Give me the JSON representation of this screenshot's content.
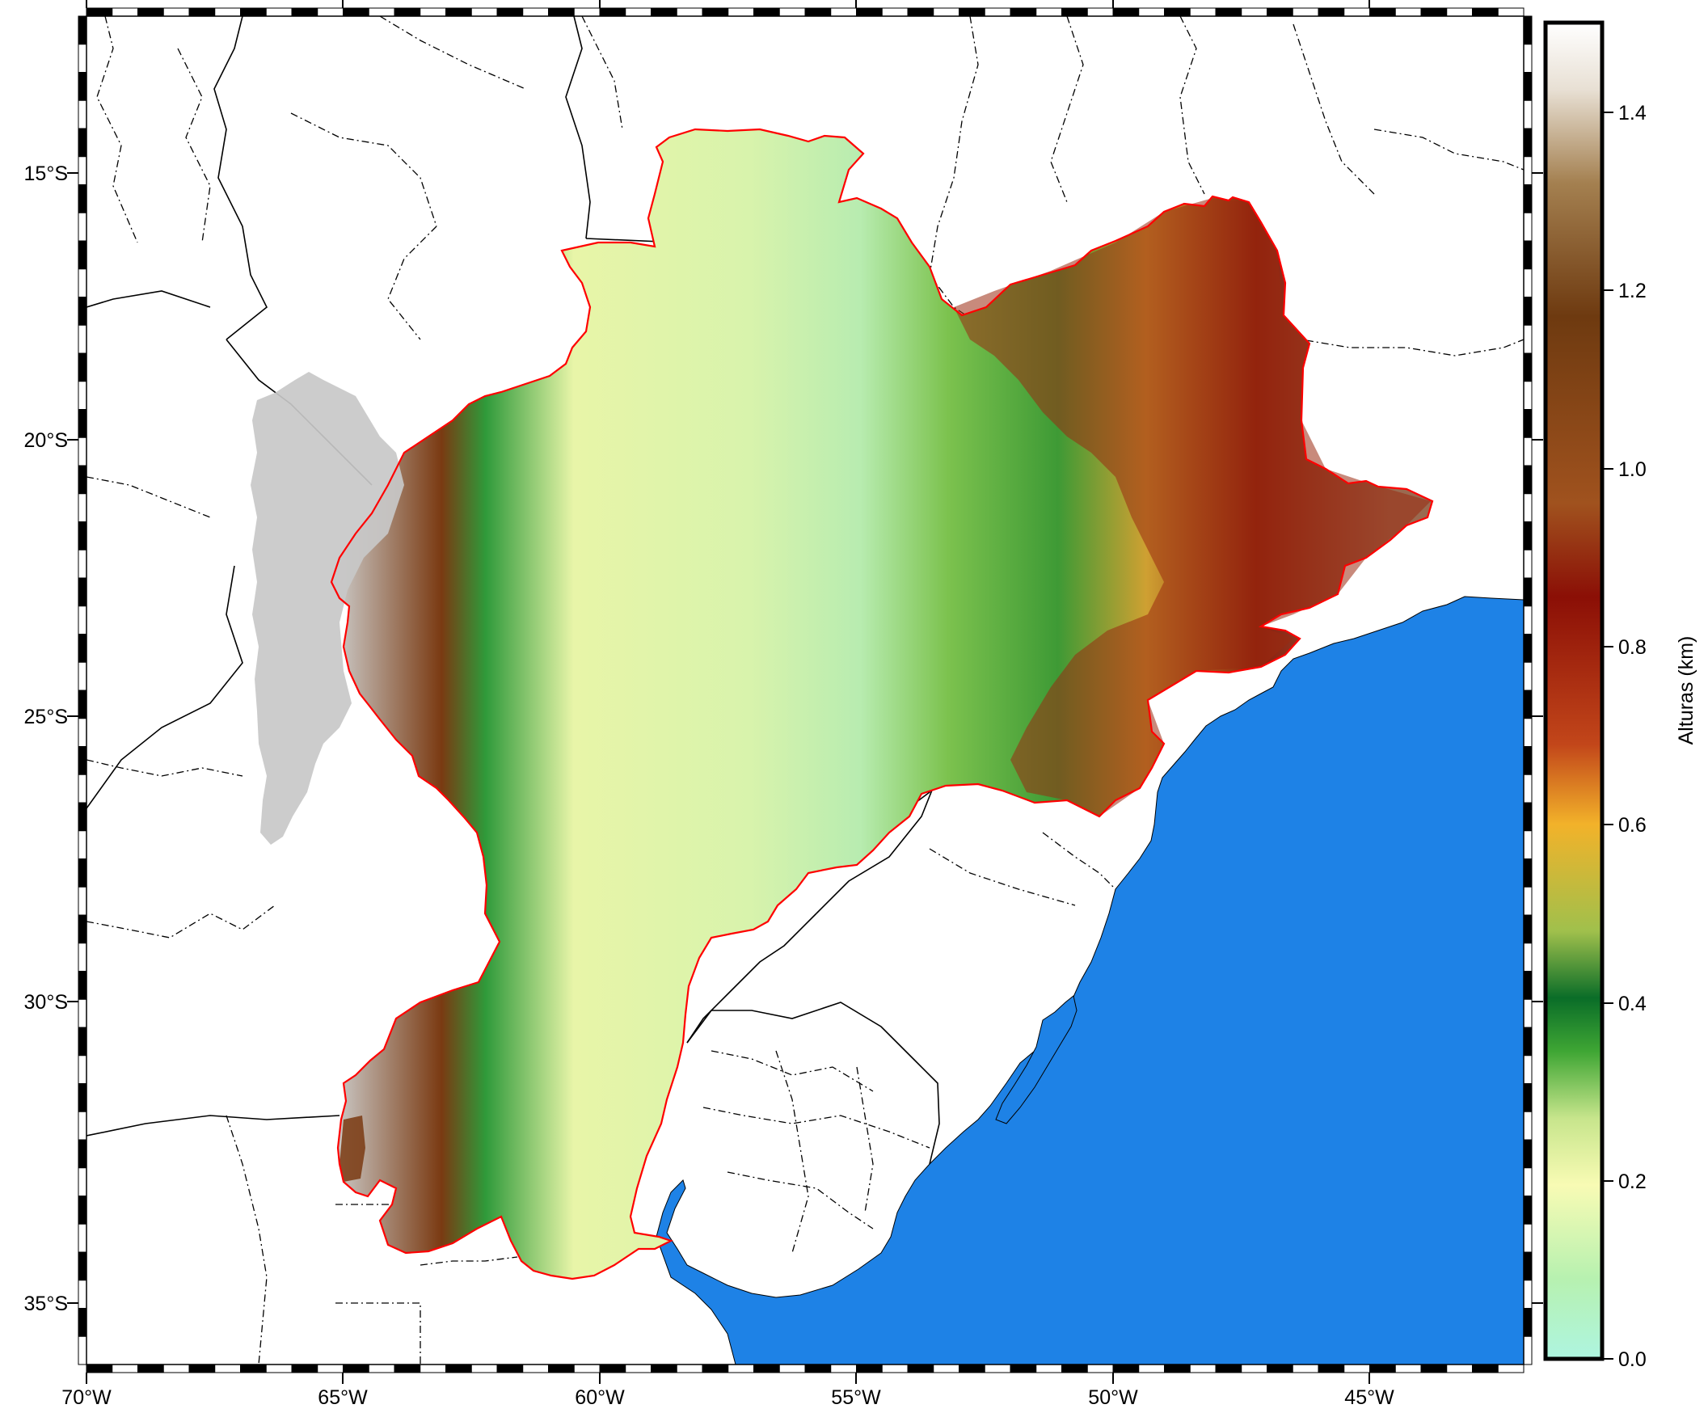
{
  "map": {
    "longitude_labels": [
      "70°W",
      "65°W",
      "60°W",
      "55°W",
      "50°W",
      "45°W"
    ],
    "latitude_labels": [
      "15°S",
      "20°S",
      "25°S",
      "30°S",
      "35°S"
    ],
    "colors": {
      "ocean": "#1e82e6",
      "basin_outline": "#ff0000",
      "borders": "#000000",
      "frame": "#000000"
    },
    "projection": "Mercator",
    "extent": {
      "lon_min": -70,
      "lon_max": -42,
      "lat_min": -36,
      "lat_max": -12
    }
  },
  "colorbar": {
    "title": "Alturas (km)",
    "tick_labels": [
      "0.0",
      "0.2",
      "0.4",
      "0.6",
      "0.8",
      "1.0",
      "1.2",
      "1.4"
    ],
    "range": [
      0.0,
      1.5
    ],
    "palette": [
      "#aef5e0",
      "#b7f1b0",
      "#f8fbb4",
      "#c7e58c",
      "#3fa634",
      "#0a6d28",
      "#a0c04c",
      "#f2b22a",
      "#c2461a",
      "#8b0f06",
      "#a0521e",
      "#6e3a10",
      "#a48050",
      "#e8e0d4",
      "#ffffff"
    ]
  }
}
